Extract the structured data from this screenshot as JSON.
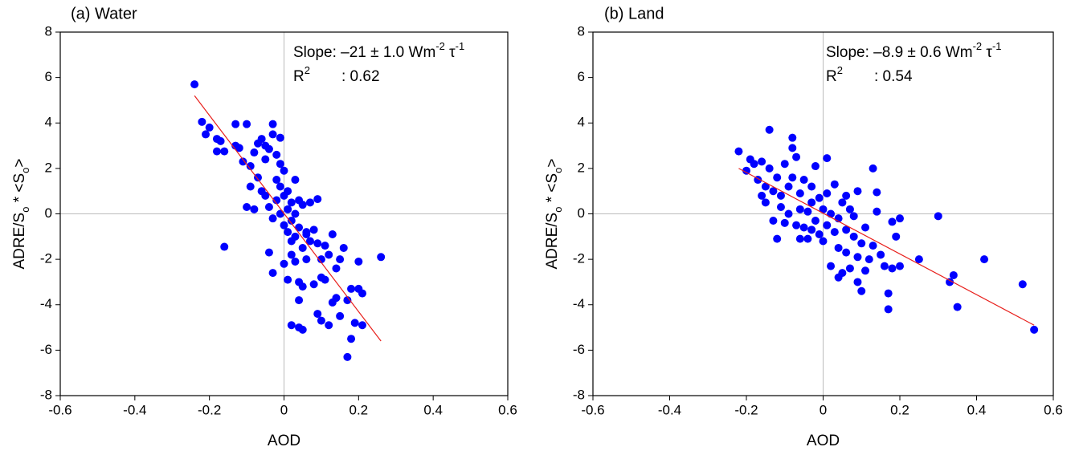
{
  "chart_data": [
    {
      "type": "scatter",
      "title": "(a) Water",
      "x_label": "AOD",
      "y_label": [
        "ADRE/S",
        "o",
        " * <S",
        "o",
        ">"
      ],
      "annotations": {
        "slope": [
          "Slope: –21 ± 1.0 Wm",
          "-2",
          " τ",
          "-1"
        ],
        "r2": [
          "R",
          "2",
          ": 0.62"
        ]
      },
      "xlim": [
        -0.6,
        0.6
      ],
      "ylim": [
        -8,
        8
      ],
      "xticks": [
        -0.6,
        -0.4,
        -0.2,
        0,
        0.2,
        0.4,
        0.6
      ],
      "yticks": [
        -8,
        -6,
        -4,
        -2,
        0,
        2,
        4,
        6,
        8
      ],
      "zero_lines": true,
      "fit_line": {
        "color": "#e8201c",
        "x": [
          -0.24,
          0.26
        ],
        "y": [
          5.2,
          -5.6
        ]
      },
      "series": [
        {
          "color": "#0000ff",
          "x": [
            -0.24,
            -0.22,
            -0.21,
            -0.2,
            -0.18,
            -0.17,
            -0.18,
            -0.16,
            -0.16,
            -0.13,
            -0.12,
            -0.13,
            -0.1,
            -0.11,
            -0.09,
            -0.08,
            -0.07,
            -0.06,
            -0.05,
            -0.04,
            -0.05,
            -0.03,
            -0.03,
            -0.02,
            -0.01,
            0.0,
            -0.1,
            -0.08,
            -0.09,
            -0.07,
            -0.06,
            -0.05,
            -0.04,
            -0.03,
            -0.02,
            -0.02,
            -0.01,
            -0.01,
            0.0,
            0.0,
            0.01,
            0.01,
            0.01,
            0.02,
            0.02,
            0.02,
            0.03,
            0.03,
            0.03,
            0.04,
            0.04,
            0.05,
            0.05,
            0.06,
            0.06,
            0.07,
            0.07,
            0.08,
            0.09,
            -0.01,
            0.0,
            0.01,
            0.02,
            0.03,
            0.04,
            0.05,
            0.04,
            -0.04,
            -0.03,
            0.02,
            0.04,
            0.05,
            0.08,
            0.09,
            0.1,
            0.11,
            0.11,
            0.12,
            0.13,
            0.14,
            0.15,
            0.16,
            0.17,
            0.18,
            0.18,
            0.17,
            0.19,
            0.2,
            0.21,
            0.2,
            0.21,
            0.26,
            0.12,
            0.1,
            0.14,
            0.09,
            0.15,
            0.1,
            0.13,
            0.06
          ],
          "y": [
            5.7,
            4.05,
            3.5,
            3.8,
            3.3,
            3.2,
            2.75,
            2.75,
            -1.45,
            3.95,
            2.9,
            3.0,
            3.95,
            2.3,
            2.1,
            2.7,
            3.1,
            3.3,
            3.0,
            2.85,
            2.4,
            3.95,
            3.5,
            2.6,
            2.2,
            1.9,
            0.3,
            0.2,
            1.2,
            1.6,
            1.0,
            0.8,
            0.3,
            -0.2,
            1.5,
            0.6,
            1.2,
            0.0,
            0.8,
            -0.5,
            1.0,
            0.2,
            -0.8,
            -0.3,
            0.5,
            -1.2,
            0.0,
            1.5,
            -1.0,
            -0.6,
            0.6,
            -1.5,
            0.4,
            -0.9,
            -2.0,
            0.5,
            -1.2,
            -0.7,
            0.65,
            3.35,
            -2.2,
            -2.9,
            -1.8,
            -2.1,
            -3.0,
            -3.2,
            -3.8,
            -1.7,
            -2.6,
            -4.9,
            -5.0,
            -5.1,
            -3.1,
            -4.4,
            -4.7,
            -2.9,
            -1.4,
            -4.9,
            -3.9,
            -3.7,
            -4.5,
            -1.5,
            -3.8,
            -5.5,
            -3.3,
            -6.3,
            -4.8,
            -3.3,
            -3.5,
            -2.1,
            -4.9,
            -1.9,
            -1.8,
            -2.0,
            -2.4,
            -1.3,
            -2.0,
            -2.8,
            -0.9,
            -0.8
          ]
        }
      ]
    },
    {
      "type": "scatter",
      "title": "(b) Land",
      "x_label": "AOD",
      "y_label": [
        "ADRE/S",
        "o",
        " * <S",
        "o",
        ">"
      ],
      "annotations": {
        "slope": [
          "Slope: –8.9 ± 0.6 Wm",
          "-2",
          " τ",
          "-1"
        ],
        "r2": [
          "R",
          "2",
          ": 0.54"
        ]
      },
      "xlim": [
        -0.6,
        0.6
      ],
      "ylim": [
        -8,
        8
      ],
      "xticks": [
        -0.6,
        -0.4,
        -0.2,
        0,
        0.2,
        0.4,
        0.6
      ],
      "yticks": [
        -8,
        -6,
        -4,
        -2,
        0,
        2,
        4,
        6,
        8
      ],
      "zero_lines": true,
      "fit_line": {
        "color": "#e8201c",
        "x": [
          -0.22,
          0.55
        ],
        "y": [
          2.0,
          -4.9
        ]
      },
      "series": [
        {
          "color": "#0000ff",
          "x": [
            -0.22,
            -0.2,
            -0.19,
            -0.18,
            -0.17,
            -0.16,
            -0.16,
            -0.15,
            -0.15,
            -0.14,
            -0.14,
            -0.13,
            -0.13,
            -0.12,
            -0.12,
            -0.11,
            -0.1,
            -0.1,
            -0.09,
            -0.09,
            -0.08,
            -0.08,
            -0.08,
            -0.07,
            -0.07,
            -0.06,
            -0.06,
            -0.05,
            -0.05,
            -0.04,
            -0.04,
            -0.03,
            -0.03,
            -0.02,
            -0.02,
            -0.01,
            -0.01,
            0.0,
            0.0,
            0.01,
            0.01,
            0.01,
            0.02,
            0.02,
            0.03,
            0.03,
            0.04,
            0.04,
            0.05,
            0.05,
            0.06,
            0.06,
            0.07,
            0.07,
            0.08,
            0.08,
            0.09,
            0.09,
            0.1,
            0.1,
            0.11,
            0.12,
            0.13,
            0.13,
            0.14,
            0.14,
            0.15,
            0.16,
            0.17,
            0.17,
            0.18,
            0.18,
            0.19,
            0.2,
            0.2,
            0.25,
            0.3,
            0.33,
            0.34,
            0.35,
            0.42,
            0.52,
            0.55,
            0.04,
            -0.06,
            0.09,
            -0.11,
            0.06,
            0.11,
            -0.03
          ],
          "y": [
            2.75,
            1.9,
            2.4,
            2.2,
            1.5,
            2.3,
            0.8,
            1.2,
            0.5,
            3.7,
            2.0,
            1.0,
            -0.3,
            1.6,
            -1.1,
            0.3,
            2.2,
            -0.4,
            1.2,
            0.0,
            3.35,
            2.9,
            1.6,
            2.5,
            -0.5,
            0.9,
            0.2,
            1.5,
            -0.6,
            0.1,
            -1.1,
            1.2,
            0.5,
            2.1,
            -0.3,
            0.7,
            -0.9,
            0.2,
            -1.2,
            2.45,
            0.9,
            -0.5,
            -2.3,
            0.0,
            1.3,
            -0.8,
            -0.2,
            -1.5,
            0.5,
            -2.6,
            -0.7,
            -1.7,
            0.2,
            -2.4,
            -1.0,
            -0.1,
            -1.9,
            -3.0,
            -1.3,
            -3.4,
            -0.6,
            -2.0,
            2.0,
            -1.4,
            0.95,
            0.1,
            -1.8,
            -2.3,
            -3.5,
            -4.2,
            -2.4,
            -0.35,
            -1.0,
            -0.2,
            -2.3,
            -2.0,
            -0.1,
            -3.0,
            -2.7,
            -4.1,
            -2.0,
            -3.1,
            -5.1,
            -2.8,
            -1.1,
            1.0,
            0.8,
            0.8,
            -2.5,
            -0.7
          ]
        }
      ]
    }
  ]
}
